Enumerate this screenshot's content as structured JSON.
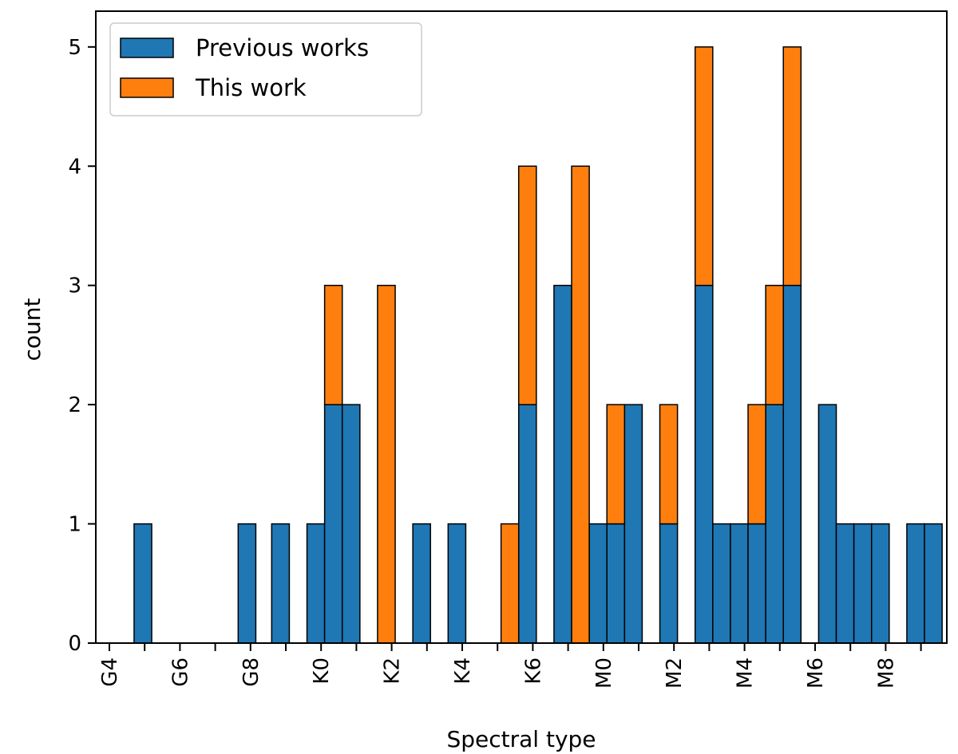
{
  "chart_data": {
    "type": "bar",
    "stacked": true,
    "xlabel": "Spectral type",
    "ylabel": "count",
    "ylim": [
      0,
      5.3
    ],
    "yticks": [
      0,
      1,
      2,
      3,
      4,
      5
    ],
    "xlim": [
      4,
      63.1
    ],
    "x_tick_labels": [
      {
        "x": 4,
        "label": "G4"
      },
      {
        "x": 6,
        "label": "G6"
      },
      {
        "x": 8,
        "label": "G8"
      },
      {
        "x": 10,
        "label": "K0"
      },
      {
        "x": 12,
        "label": "K2"
      },
      {
        "x": 14,
        "label": "K4"
      },
      {
        "x": 16,
        "label": "K6"
      },
      {
        "x": 18,
        "label": "M0"
      },
      {
        "x": 20,
        "label": "M2"
      },
      {
        "x": 22,
        "label": "M4"
      },
      {
        "x": 24,
        "label": "M6"
      },
      {
        "x": 26,
        "label": "M8"
      }
    ],
    "legend_position": "upper-left",
    "grid": false,
    "series": [
      {
        "name": "Previous works",
        "color": "#1f77b4",
        "bars": [
          {
            "x": 4.95,
            "value": 1
          },
          {
            "x": 7.9,
            "value": 1
          },
          {
            "x": 8.85,
            "value": 1
          },
          {
            "x": 9.85,
            "value": 1
          },
          {
            "x": 10.35,
            "value": 2
          },
          {
            "x": 10.85,
            "value": 2
          },
          {
            "x": 12.85,
            "value": 1
          },
          {
            "x": 13.85,
            "value": 1
          },
          {
            "x": 15.85,
            "value": 2
          },
          {
            "x": 16.85,
            "value": 3
          },
          {
            "x": 17.85,
            "value": 1
          },
          {
            "x": 18.35,
            "value": 1
          },
          {
            "x": 18.85,
            "value": 2
          },
          {
            "x": 19.85,
            "value": 1
          },
          {
            "x": 20.85,
            "value": 3
          },
          {
            "x": 21.35,
            "value": 1
          },
          {
            "x": 21.85,
            "value": 1
          },
          {
            "x": 22.35,
            "value": 1
          },
          {
            "x": 22.85,
            "value": 2
          },
          {
            "x": 23.35,
            "value": 3
          },
          {
            "x": 24.35,
            "value": 2
          },
          {
            "x": 24.85,
            "value": 1
          },
          {
            "x": 25.35,
            "value": 1
          },
          {
            "x": 25.85,
            "value": 1
          },
          {
            "x": 26.85,
            "value": 1
          },
          {
            "x": 27.35,
            "value": 1
          }
        ]
      },
      {
        "name": "This work",
        "color": "#ff7f0e",
        "bars": [
          {
            "x": 10.35,
            "value": 1
          },
          {
            "x": 11.85,
            "value": 3
          },
          {
            "x": 15.35,
            "value": 1
          },
          {
            "x": 15.85,
            "value": 2
          },
          {
            "x": 17.35,
            "value": 4
          },
          {
            "x": 18.35,
            "value": 1
          },
          {
            "x": 19.85,
            "value": 1
          },
          {
            "x": 20.85,
            "value": 2
          },
          {
            "x": 22.35,
            "value": 1
          },
          {
            "x": 22.85,
            "value": 1
          },
          {
            "x": 23.35,
            "value": 2
          }
        ]
      }
    ]
  }
}
